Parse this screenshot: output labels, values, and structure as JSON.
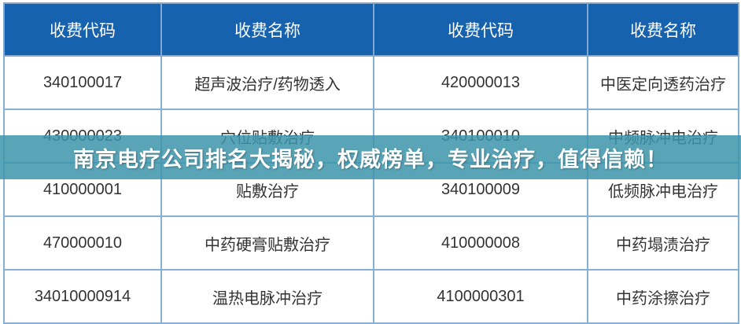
{
  "table": {
    "headers": [
      "收费代码",
      "收费名称",
      "收费代码",
      "收费名称"
    ],
    "rows": [
      [
        "340100017",
        "超声波治疗/药物透入",
        "420000013",
        "中医定向透药治疗"
      ],
      [
        "430000023",
        "穴位贴敷治疗",
        "340100010",
        "中频脉冲电治疗"
      ],
      [
        "410000001",
        "贴敷治疗",
        "340100009",
        "低频脉冲电治疗"
      ],
      [
        "470000010",
        "中药硬膏贴敷治疗",
        "410000008",
        "中药塌渍治疗"
      ],
      [
        "34010000914",
        "温热电脉冲治疗",
        "4100000301",
        "中药涂擦治疗"
      ]
    ]
  },
  "banner": {
    "title": "南京电疗公司排名大揭秘，权威榜单，专业治疗，值得信赖！"
  },
  "colors": {
    "header": "#1762ae",
    "banner": "#3c94aa"
  }
}
